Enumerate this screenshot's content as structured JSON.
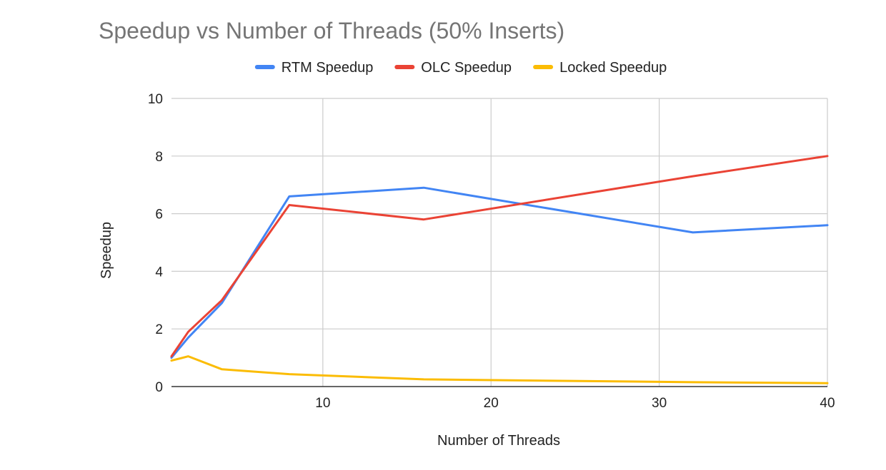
{
  "chart_data": {
    "type": "line",
    "title": "Speedup vs Number of Threads (50% Inserts)",
    "xlabel": "Number of Threads",
    "ylabel": "Speedup",
    "xlim": [
      1,
      40
    ],
    "ylim": [
      0,
      10
    ],
    "x_ticks": [
      10,
      20,
      30,
      40
    ],
    "y_ticks": [
      0,
      2,
      4,
      6,
      8,
      10
    ],
    "grid": true,
    "legend_position": "top",
    "x": [
      1,
      2,
      4,
      8,
      16,
      32,
      40
    ],
    "series": [
      {
        "name": "RTM Speedup",
        "color": "#4285f4",
        "values": [
          1.0,
          1.7,
          2.9,
          6.6,
          6.9,
          5.35,
          5.6
        ]
      },
      {
        "name": "OLC Speedup",
        "color": "#ea4335",
        "values": [
          1.05,
          1.9,
          3.0,
          6.3,
          5.8,
          7.3,
          8.0
        ]
      },
      {
        "name": "Locked Speedup",
        "color": "#fbbc04",
        "values": [
          0.9,
          1.05,
          0.6,
          0.43,
          0.25,
          0.15,
          0.12
        ]
      }
    ]
  }
}
